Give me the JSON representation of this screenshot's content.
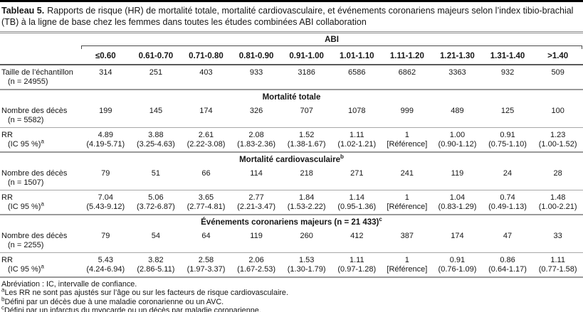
{
  "title": {
    "label": "Tableau 5.",
    "text": "Rapports de risque (HR) de mortalité totale, mortalité cardiovasculaire, et événements coronariens majeurs selon l’index tibio-brachial (TB) à la ligne de base chez les femmes dans toutes les études combinées ABI collaboration"
  },
  "table": {
    "spanner_label": "ABI",
    "column_headers": [
      "≤0.60",
      "0.61-0.70",
      "0.71-0.80",
      "0.81-0.90",
      "0.91-1.00",
      "1.01-1.10",
      "1.11-1.20",
      "1.21-1.30",
      "1.31-1.40",
      ">1.40"
    ],
    "rows": [
      {
        "type": "count",
        "label": "Taille de l’échantillon",
        "sublabel": "(n = 24955)",
        "values": [
          "314",
          "251",
          "403",
          "933",
          "3186",
          "6586",
          "6862",
          "3363",
          "932",
          "509"
        ]
      },
      {
        "type": "section",
        "label": "Mortalité totale",
        "sup": ""
      },
      {
        "type": "count",
        "label": "Nombre des décès",
        "sublabel": "(n = 5582)",
        "values": [
          "199",
          "145",
          "174",
          "326",
          "707",
          "1078",
          "999",
          "489",
          "125",
          "100"
        ]
      },
      {
        "type": "rr",
        "label": "RR",
        "sublabel": "(IC 95 %)",
        "sup": "a",
        "values": [
          [
            "4.89",
            "(4.19-5.71)"
          ],
          [
            "3.88",
            "(3.25-4.63)"
          ],
          [
            "2.61",
            "(2.22-3.08)"
          ],
          [
            "2.08",
            "(1.83-2.36)"
          ],
          [
            "1.52",
            "(1.38-1.67)"
          ],
          [
            "1.11",
            "(1.02-1.21)"
          ],
          [
            "1",
            "[Référence]"
          ],
          [
            "1.00",
            "(0.90-1.12)"
          ],
          [
            "0.91",
            "(0.75-1.10)"
          ],
          [
            "1.23",
            "(1.00-1.52)"
          ]
        ]
      },
      {
        "type": "section",
        "label": "Mortalité cardiovasculaire",
        "sup": "b"
      },
      {
        "type": "count",
        "label": "Nombre des décès",
        "sublabel": "(n = 1507)",
        "values": [
          "79",
          "51",
          "66",
          "114",
          "218",
          "271",
          "241",
          "119",
          "24",
          "28"
        ]
      },
      {
        "type": "rr",
        "label": "RR",
        "sublabel": "(IC 95 %)",
        "sup": "a",
        "values": [
          [
            "7.04",
            "(5.43-9.12)"
          ],
          [
            "5.06",
            "(3.72-6.87)"
          ],
          [
            "3.65",
            "(2.77-4.81)"
          ],
          [
            "2.77",
            "(2.21-3.47)"
          ],
          [
            "1.84",
            "(1.53-2.22)"
          ],
          [
            "1.14",
            "(0.95-1.36)"
          ],
          [
            "1",
            "[Référence]"
          ],
          [
            "1.04",
            "(0.83-1.29)"
          ],
          [
            "0.74",
            "(0.49-1.13)"
          ],
          [
            "1.48",
            "(1.00-2.21)"
          ]
        ]
      },
      {
        "type": "section",
        "label": "Événements coronariens majeurs (n = 21 433)",
        "sup": "c"
      },
      {
        "type": "count",
        "label": "Nombre des décès",
        "sublabel": "(n = 2255)",
        "values": [
          "79",
          "54",
          "64",
          "119",
          "260",
          "412",
          "387",
          "174",
          "47",
          "33"
        ]
      },
      {
        "type": "rr",
        "label": "RR",
        "sublabel": "(IC 95 %)",
        "sup": "a",
        "values": [
          [
            "5.43",
            "(4.24-6.94)"
          ],
          [
            "3.82",
            "(2.86-5.11)"
          ],
          [
            "2.58",
            "(1.97-3.37)"
          ],
          [
            "2.06",
            "(1.67-2.53)"
          ],
          [
            "1.53",
            "(1.30-1.79)"
          ],
          [
            "1.11",
            "(0.97-1.28)"
          ],
          [
            "1",
            "[Référence]"
          ],
          [
            "0.91",
            "(0.76-1.09)"
          ],
          [
            "0.86",
            "(0.64-1.17)"
          ],
          [
            "1.11",
            "(0.77-1.58)"
          ]
        ]
      }
    ]
  },
  "footnotes": [
    {
      "sup": "",
      "text": "Abréviation : IC, intervalle de confiance."
    },
    {
      "sup": "a",
      "text": "Les RR ne sont pas ajustés sur l’âge ou sur les facteurs de risque cardiovasculaire."
    },
    {
      "sup": "b",
      "text": "Défini par un décès due à une maladie coronarienne ou un AVC."
    },
    {
      "sup": "c",
      "text": "Défini par un infarctus du myocarde ou un décès par maladie coronarienne."
    }
  ]
}
